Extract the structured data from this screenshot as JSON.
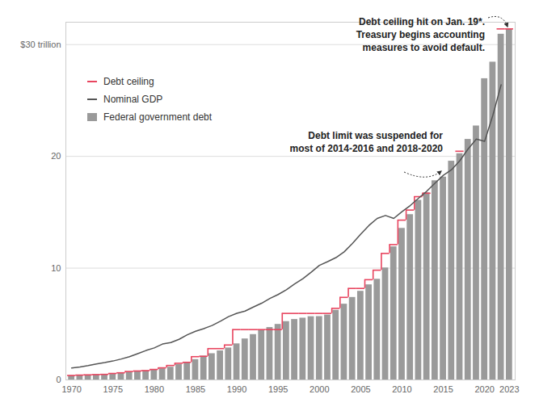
{
  "chart_data": {
    "type": "bar",
    "x": [
      1970,
      1971,
      1972,
      1973,
      1974,
      1975,
      1976,
      1977,
      1978,
      1979,
      1980,
      1981,
      1982,
      1983,
      1984,
      1985,
      1986,
      1987,
      1988,
      1989,
      1990,
      1991,
      1992,
      1993,
      1994,
      1995,
      1996,
      1997,
      1998,
      1999,
      2000,
      2001,
      2002,
      2003,
      2004,
      2005,
      2006,
      2007,
      2008,
      2009,
      2010,
      2011,
      2012,
      2013,
      2014,
      2015,
      2016,
      2017,
      2018,
      2019,
      2020,
      2021,
      2022,
      2023
    ],
    "series": [
      {
        "name": "Debt ceiling",
        "type": "line",
        "line_style": "step",
        "color": "#e8455f",
        "values": [
          0.395,
          0.43,
          0.45,
          0.475,
          0.495,
          0.577,
          0.636,
          0.752,
          0.798,
          0.83,
          0.935,
          1.079,
          1.29,
          1.49,
          1.573,
          2.079,
          2.111,
          2.8,
          2.8,
          3.123,
          4.5,
          4.5,
          4.5,
          4.5,
          4.5,
          4.5,
          5.95,
          5.95,
          5.95,
          5.95,
          5.95,
          5.95,
          6.4,
          7.384,
          8.184,
          8.184,
          8.965,
          9.815,
          11.315,
          12.104,
          14.294,
          15.194,
          16.394,
          16.7,
          null,
          null,
          null,
          20.456,
          null,
          null,
          null,
          null,
          31.4,
          31.4
        ]
      },
      {
        "name": "Nominal GDP",
        "type": "line",
        "color": "#555555",
        "values": [
          1.07,
          1.16,
          1.28,
          1.43,
          1.55,
          1.69,
          1.87,
          2.08,
          2.35,
          2.63,
          2.86,
          3.21,
          3.34,
          3.63,
          4.04,
          4.35,
          4.59,
          4.87,
          5.25,
          5.66,
          5.96,
          6.16,
          6.52,
          6.86,
          7.29,
          7.64,
          8.07,
          8.58,
          9.06,
          9.63,
          10.25,
          10.58,
          10.94,
          11.46,
          12.21,
          13.04,
          13.82,
          14.45,
          14.71,
          14.45,
          15.05,
          15.6,
          16.25,
          16.88,
          17.61,
          18.3,
          18.8,
          19.61,
          20.66,
          21.54,
          21.35,
          23.68,
          26.4,
          null
        ]
      },
      {
        "name": "Federal government debt",
        "type": "bar",
        "color": "#9a9a9a",
        "values": [
          0.38,
          0.41,
          0.44,
          0.47,
          0.48,
          0.54,
          0.63,
          0.71,
          0.78,
          0.83,
          0.91,
          1.0,
          1.14,
          1.38,
          1.57,
          1.82,
          2.13,
          2.35,
          2.6,
          2.86,
          3.23,
          3.67,
          4.06,
          4.41,
          4.69,
          4.97,
          5.22,
          5.41,
          5.53,
          5.66,
          5.67,
          5.81,
          6.23,
          6.78,
          7.38,
          7.93,
          8.51,
          9.01,
          10.02,
          11.91,
          13.56,
          14.79,
          16.07,
          16.74,
          17.82,
          18.15,
          19.57,
          20.24,
          21.52,
          22.72,
          26.95,
          28.43,
          30.93,
          31.4
        ]
      }
    ],
    "xlim": [
      1969.3,
      2023.7
    ],
    "xticks": [
      1970,
      1975,
      1980,
      1985,
      1990,
      1995,
      2000,
      2005,
      2010,
      2015,
      2020,
      2023
    ],
    "ylim": [
      0,
      32
    ],
    "yticks": [
      0,
      10,
      20,
      {
        "value": 30,
        "label": "$30 trillion"
      }
    ],
    "grid": true,
    "legend": "top-left",
    "annotations": [
      {
        "text": "Debt ceiling hit on Jan. 19*. Treasury begins accounting measures to avoid default."
      },
      {
        "text": "Debt limit was suspended for most of 2014-2016 and 2018-2020"
      }
    ]
  }
}
